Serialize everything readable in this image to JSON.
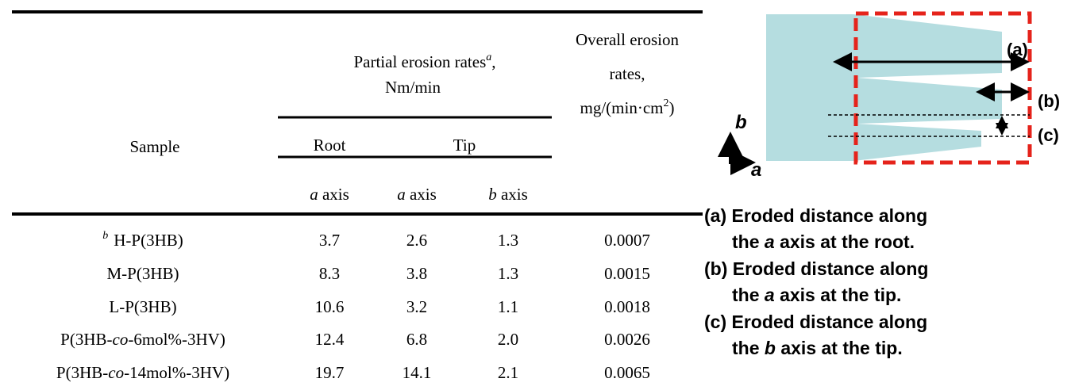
{
  "table": {
    "header": {
      "sample": "Sample",
      "partial": {
        "line1": "Partial erosion rates",
        "note": "a",
        "comma": ",",
        "line2": "Nm/min"
      },
      "overall": {
        "line1": "Overall erosion",
        "line2": "rates,",
        "line3": "mg/(min·cm",
        "sup": "2",
        "close": ")"
      },
      "root": "Root",
      "tip": "Tip",
      "axes": [
        {
          "letter": "a",
          "word": " axis"
        },
        {
          "letter": "a",
          "word": " axis"
        },
        {
          "letter": "b",
          "word": " axis"
        }
      ]
    },
    "rows": [
      {
        "sample": {
          "note": "b",
          "name": [
            "H-P(3HB)"
          ]
        },
        "values": [
          "3.7",
          "2.6",
          "1.3",
          "0.0007"
        ]
      },
      {
        "sample": {
          "name": [
            "M-P(3HB)"
          ]
        },
        "values": [
          "8.3",
          "3.8",
          "1.3",
          "0.0015"
        ]
      },
      {
        "sample": {
          "name": [
            "L-P(3HB)"
          ]
        },
        "values": [
          "10.6",
          "3.2",
          "1.1",
          "0.0018"
        ]
      },
      {
        "sample": {
          "name": [
            "P(3HB-",
            "co",
            "-6mol%-3HV)"
          ]
        },
        "values": [
          "12.4",
          "6.8",
          "2.0",
          "0.0026"
        ]
      },
      {
        "sample": {
          "name": [
            "P(3HB-",
            "co",
            "-14mol%-3HV)"
          ]
        },
        "values": [
          "19.7",
          "14.1",
          "2.1",
          "0.0065"
        ]
      }
    ]
  },
  "diagram": {
    "labels": [
      "(a)",
      "(b)",
      "(c)"
    ],
    "axis_b": "b",
    "axis_a": "a"
  },
  "legend": [
    {
      "line1": "(a) Eroded distance along",
      "pre": "the ",
      "letter": "a",
      "post": " axis at the root."
    },
    {
      "line1": "(b) Eroded distance along",
      "pre": "the ",
      "letter": "a",
      "post": " axis at the tip."
    },
    {
      "line1": "(c) Eroded distance along",
      "pre": "the ",
      "letter": "b",
      "post": " axis at the tip."
    }
  ]
}
